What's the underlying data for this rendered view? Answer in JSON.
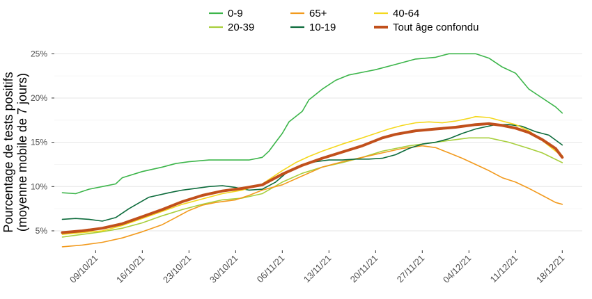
{
  "chart_data": {
    "type": "line",
    "title": "",
    "ylabel_lines": [
      "Pourcentage de tests positifs",
      "(moyenne mobile de 7 jours)"
    ],
    "xlabel": "",
    "x_start": "2021-10-04",
    "x_ticks": [
      {
        "day": 5,
        "label": "09/10/21"
      },
      {
        "day": 12,
        "label": "16/10/21"
      },
      {
        "day": 19,
        "label": "23/10/21"
      },
      {
        "day": 26,
        "label": "30/10/21"
      },
      {
        "day": 33,
        "label": "06/11/21"
      },
      {
        "day": 40,
        "label": "13/11/21"
      },
      {
        "day": 47,
        "label": "20/11/21"
      },
      {
        "day": 54,
        "label": "27/11/21"
      },
      {
        "day": 61,
        "label": "04/12/21"
      },
      {
        "day": 68,
        "label": "11/12/21"
      },
      {
        "day": 75,
        "label": "18/12/21"
      }
    ],
    "y_ticks": [
      {
        "value": 5,
        "label": "5%"
      },
      {
        "value": 10,
        "label": "10%"
      },
      {
        "value": 15,
        "label": "15%"
      },
      {
        "value": 20,
        "label": "20%"
      },
      {
        "value": 25,
        "label": "25%"
      }
    ],
    "xlim": [
      -1.2,
      78
    ],
    "ylim": [
      2.8,
      26.2
    ],
    "grid": true,
    "legend_position": "top",
    "series": [
      {
        "name": "0-9",
        "color": "#3cb54a",
        "width": 1.6,
        "legend_slot": 0,
        "points": [
          [
            0,
            9.3
          ],
          [
            2,
            9.2
          ],
          [
            4,
            9.7
          ],
          [
            6,
            10.0
          ],
          [
            8,
            10.3
          ],
          [
            9,
            11.0
          ],
          [
            12,
            11.7
          ],
          [
            15,
            12.2
          ],
          [
            17,
            12.6
          ],
          [
            19,
            12.8
          ],
          [
            22,
            13.0
          ],
          [
            26,
            13.0
          ],
          [
            28,
            13.0
          ],
          [
            30,
            13.3
          ],
          [
            31,
            14.0
          ],
          [
            32,
            15.0
          ],
          [
            33,
            16.0
          ],
          [
            34,
            17.3
          ],
          [
            36,
            18.5
          ],
          [
            37,
            19.8
          ],
          [
            39,
            21.0
          ],
          [
            41,
            22.0
          ],
          [
            43,
            22.6
          ],
          [
            45,
            22.9
          ],
          [
            47,
            23.2
          ],
          [
            50,
            23.8
          ],
          [
            53,
            24.4
          ],
          [
            56,
            24.6
          ],
          [
            58,
            25.0
          ],
          [
            62,
            25.0
          ],
          [
            64,
            24.5
          ],
          [
            66,
            23.5
          ],
          [
            68,
            22.8
          ],
          [
            70,
            21.0
          ],
          [
            72,
            20.0
          ],
          [
            74,
            19.0
          ],
          [
            75,
            18.3
          ]
        ]
      },
      {
        "name": "20-39",
        "color": "#a8cf3d",
        "width": 1.6,
        "legend_slot": 1,
        "points": [
          [
            0,
            4.3
          ],
          [
            3,
            4.6
          ],
          [
            6,
            4.9
          ],
          [
            9,
            5.3
          ],
          [
            12,
            5.9
          ],
          [
            15,
            6.7
          ],
          [
            18,
            7.4
          ],
          [
            21,
            8.0
          ],
          [
            24,
            8.5
          ],
          [
            27,
            8.7
          ],
          [
            30,
            9.2
          ],
          [
            33,
            10.5
          ],
          [
            36,
            11.5
          ],
          [
            39,
            12.2
          ],
          [
            42,
            12.7
          ],
          [
            45,
            13.3
          ],
          [
            48,
            14.0
          ],
          [
            50,
            14.3
          ],
          [
            52,
            14.6
          ],
          [
            55,
            14.9
          ],
          [
            58,
            15.2
          ],
          [
            61,
            15.5
          ],
          [
            64,
            15.5
          ],
          [
            67,
            15.0
          ],
          [
            70,
            14.3
          ],
          [
            72,
            13.8
          ],
          [
            75,
            12.7
          ]
        ]
      },
      {
        "name": "65+",
        "color": "#f29a1d",
        "width": 1.6,
        "legend_slot": 2,
        "points": [
          [
            0,
            3.2
          ],
          [
            3,
            3.4
          ],
          [
            6,
            3.7
          ],
          [
            9,
            4.2
          ],
          [
            12,
            4.9
          ],
          [
            15,
            5.7
          ],
          [
            17,
            6.5
          ],
          [
            19,
            7.3
          ],
          [
            21,
            7.9
          ],
          [
            23,
            8.2
          ],
          [
            26,
            8.5
          ],
          [
            28,
            9.0
          ],
          [
            30,
            9.6
          ],
          [
            33,
            10.2
          ],
          [
            36,
            11.2
          ],
          [
            39,
            12.2
          ],
          [
            42,
            12.8
          ],
          [
            45,
            13.3
          ],
          [
            48,
            13.8
          ],
          [
            51,
            14.3
          ],
          [
            54,
            14.6
          ],
          [
            56,
            14.4
          ],
          [
            58,
            13.8
          ],
          [
            60,
            13.2
          ],
          [
            62,
            12.5
          ],
          [
            64,
            11.8
          ],
          [
            66,
            11.0
          ],
          [
            68,
            10.5
          ],
          [
            70,
            9.8
          ],
          [
            72,
            9.0
          ],
          [
            74,
            8.2
          ],
          [
            75,
            8.0
          ]
        ]
      },
      {
        "name": "10-19",
        "color": "#0c6b3b",
        "width": 1.6,
        "legend_slot": 3,
        "points": [
          [
            0,
            6.3
          ],
          [
            2,
            6.4
          ],
          [
            4,
            6.3
          ],
          [
            6,
            6.1
          ],
          [
            8,
            6.5
          ],
          [
            10,
            7.5
          ],
          [
            13,
            8.8
          ],
          [
            16,
            9.3
          ],
          [
            18,
            9.6
          ],
          [
            20,
            9.8
          ],
          [
            22,
            10.0
          ],
          [
            24,
            10.1
          ],
          [
            26,
            9.9
          ],
          [
            28,
            9.6
          ],
          [
            30,
            9.7
          ],
          [
            32,
            10.5
          ],
          [
            34,
            11.8
          ],
          [
            36,
            12.5
          ],
          [
            38,
            12.8
          ],
          [
            40,
            13.0
          ],
          [
            42,
            13.0
          ],
          [
            44,
            13.1
          ],
          [
            46,
            13.1
          ],
          [
            48,
            13.2
          ],
          [
            50,
            13.6
          ],
          [
            52,
            14.3
          ],
          [
            54,
            14.8
          ],
          [
            56,
            15.0
          ],
          [
            58,
            15.4
          ],
          [
            60,
            16.0
          ],
          [
            62,
            16.5
          ],
          [
            65,
            17.0
          ],
          [
            67,
            17.0
          ],
          [
            69,
            16.8
          ],
          [
            71,
            16.2
          ],
          [
            73,
            15.8
          ],
          [
            75,
            14.7
          ]
        ]
      },
      {
        "name": "40-64",
        "color": "#f4d81d",
        "width": 1.6,
        "legend_slot": 4,
        "points": [
          [
            0,
            4.6
          ],
          [
            3,
            4.8
          ],
          [
            6,
            5.0
          ],
          [
            9,
            5.6
          ],
          [
            12,
            6.4
          ],
          [
            15,
            7.2
          ],
          [
            18,
            8.0
          ],
          [
            21,
            8.6
          ],
          [
            24,
            9.2
          ],
          [
            27,
            9.6
          ],
          [
            30,
            10.3
          ],
          [
            33,
            11.8
          ],
          [
            35,
            12.7
          ],
          [
            37,
            13.4
          ],
          [
            39,
            14.0
          ],
          [
            42,
            14.8
          ],
          [
            45,
            15.5
          ],
          [
            47,
            16.0
          ],
          [
            49,
            16.5
          ],
          [
            51,
            16.9
          ],
          [
            53,
            17.2
          ],
          [
            55,
            17.3
          ],
          [
            57,
            17.2
          ],
          [
            59,
            17.4
          ],
          [
            61,
            17.7
          ],
          [
            62,
            17.9
          ],
          [
            64,
            17.8
          ],
          [
            66,
            17.4
          ],
          [
            68,
            17.0
          ],
          [
            70,
            16.3
          ],
          [
            72,
            15.2
          ],
          [
            74,
            14.0
          ],
          [
            75,
            13.5
          ]
        ]
      },
      {
        "name": "Tout âge confondu",
        "color": "#c1501c",
        "width": 4,
        "legend_slot": 5,
        "points": [
          [
            0,
            4.8
          ],
          [
            3,
            5.0
          ],
          [
            6,
            5.3
          ],
          [
            9,
            5.8
          ],
          [
            12,
            6.6
          ],
          [
            15,
            7.4
          ],
          [
            18,
            8.3
          ],
          [
            21,
            9.0
          ],
          [
            24,
            9.5
          ],
          [
            27,
            9.8
          ],
          [
            30,
            10.2
          ],
          [
            33,
            11.4
          ],
          [
            36,
            12.4
          ],
          [
            39,
            13.2
          ],
          [
            42,
            13.9
          ],
          [
            45,
            14.6
          ],
          [
            48,
            15.5
          ],
          [
            50,
            15.9
          ],
          [
            53,
            16.3
          ],
          [
            56,
            16.5
          ],
          [
            59,
            16.7
          ],
          [
            62,
            17.0
          ],
          [
            64,
            17.1
          ],
          [
            66,
            16.9
          ],
          [
            68,
            16.6
          ],
          [
            70,
            16.1
          ],
          [
            72,
            15.3
          ],
          [
            74,
            14.3
          ],
          [
            75,
            13.3
          ]
        ]
      }
    ]
  }
}
